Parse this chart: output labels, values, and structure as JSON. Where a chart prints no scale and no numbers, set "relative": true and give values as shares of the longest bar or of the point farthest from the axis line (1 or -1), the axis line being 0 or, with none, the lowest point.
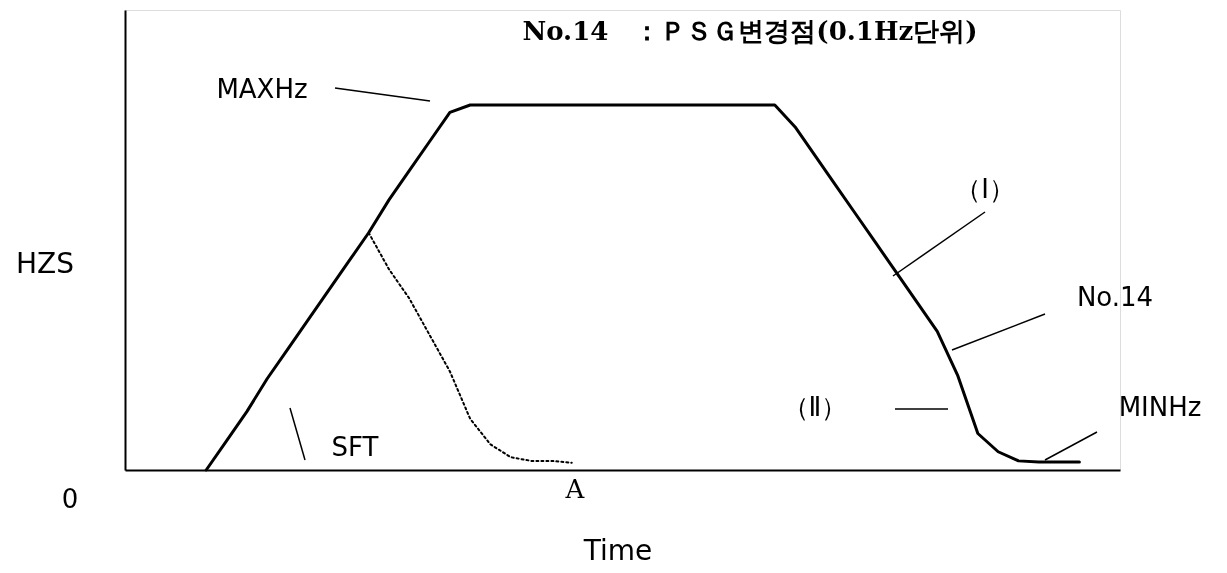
{
  "chart_data": {
    "type": "line",
    "relative": true,
    "title": "No.14　：ＰＳＧ변경점(0.1Hz단위)",
    "xlabel": "Time",
    "ylabel": "HZS",
    "categories": [
      null,
      null,
      null,
      null,
      null,
      null,
      null,
      null,
      null,
      null,
      null,
      null,
      null,
      null,
      null,
      null,
      null,
      null,
      null,
      null,
      null,
      null,
      null,
      null,
      null,
      null,
      null,
      null,
      null,
      null,
      null,
      null,
      null,
      null,
      null,
      null,
      null,
      null,
      null,
      null,
      null,
      null,
      null,
      null,
      null,
      null,
      null,
      null,
      null
    ],
    "series": [
      {
        "color": "#000000",
        "line_style": "solid",
        "values": [
          null,
          null,
          null,
          null,
          0,
          0.08,
          0.16,
          0.25,
          0.33,
          0.41,
          0.49,
          0.57,
          0.65,
          0.74,
          0.82,
          0.9,
          0.98,
          1,
          1,
          1,
          1,
          1,
          1,
          1,
          1,
          1,
          1,
          1,
          1,
          1,
          1,
          1,
          1,
          0.94,
          0.86,
          0.78,
          0.7,
          0.62,
          0.54,
          0.46,
          0.38,
          0.26,
          0.1,
          0.05,
          0.025,
          0.022,
          0.022,
          0.022,
          null
        ]
      },
      {
        "color": "#000000",
        "line_style": "dotted",
        "values": [
          null,
          null,
          null,
          null,
          null,
          null,
          null,
          null,
          null,
          null,
          null,
          null,
          0.65,
          0.55,
          0.47,
          0.37,
          0.27,
          0.14,
          0.07,
          0.035,
          0.025,
          0.025,
          0.02,
          null,
          null,
          null,
          null,
          null,
          null,
          null,
          null,
          null,
          null,
          null,
          null,
          null,
          null,
          null,
          null,
          null,
          null,
          null,
          null,
          null,
          null,
          null,
          null,
          null,
          null
        ]
      }
    ],
    "annotations": [
      "MAXHz",
      "（Ⅰ）",
      "No.14",
      "（Ⅱ）",
      "MINHz",
      "SFT",
      "A",
      "0"
    ]
  }
}
